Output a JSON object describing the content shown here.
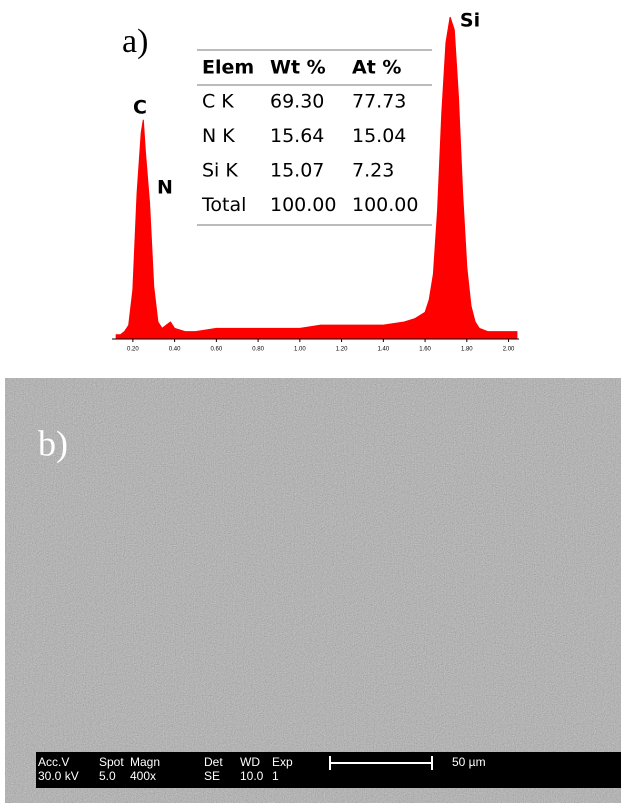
{
  "chart_data": {
    "type": "area",
    "panel_label": "a)",
    "color": "#ff0000",
    "x": [
      0.12,
      0.14,
      0.16,
      0.18,
      0.2,
      0.22,
      0.24,
      0.25,
      0.26,
      0.28,
      0.3,
      0.32,
      0.34,
      0.36,
      0.38,
      0.4,
      0.45,
      0.5,
      0.6,
      0.7,
      0.8,
      0.9,
      1.0,
      1.1,
      1.2,
      1.3,
      1.4,
      1.5,
      1.55,
      1.6,
      1.62,
      1.64,
      1.66,
      1.68,
      1.7,
      1.72,
      1.74,
      1.76,
      1.78,
      1.8,
      1.82,
      1.84,
      1.86,
      1.9,
      2.0,
      2.04
    ],
    "values": [
      1,
      1,
      2,
      4,
      15,
      45,
      64,
      68,
      58,
      42,
      16,
      5,
      3,
      4,
      5,
      3,
      2,
      2,
      3,
      3,
      3,
      3,
      3,
      4,
      4,
      4,
      4,
      5,
      6,
      8,
      12,
      20,
      40,
      70,
      92,
      100,
      96,
      75,
      45,
      22,
      10,
      5,
      3,
      2,
      2,
      2
    ],
    "xlim": [
      0.1,
      2.05
    ],
    "ylim": [
      0,
      100
    ],
    "xticks": [
      {
        "value": 0.2,
        "label": "0.20"
      },
      {
        "value": 0.4,
        "label": "0.40"
      },
      {
        "value": 0.6,
        "label": "0.60"
      },
      {
        "value": 0.8,
        "label": "0.80"
      },
      {
        "value": 1.0,
        "label": "1.00"
      },
      {
        "value": 1.2,
        "label": "1.20"
      },
      {
        "value": 1.4,
        "label": "1.40"
      },
      {
        "value": 1.6,
        "label": "1.60"
      },
      {
        "value": 1.8,
        "label": "1.80"
      },
      {
        "value": 2.0,
        "label": "2.00"
      }
    ],
    "annotations": [
      "C",
      "N",
      "Si"
    ]
  },
  "table": {
    "header": [
      "Elem",
      "Wt %",
      "At %"
    ],
    "rows": [
      [
        "C K",
        "69.30",
        "77.73"
      ],
      [
        "N K",
        "15.64",
        "15.04"
      ],
      [
        "Si K",
        "15.07",
        "7.23"
      ],
      [
        "Total",
        "100.00",
        "100.00"
      ]
    ]
  },
  "sem": {
    "panel_label": "b)",
    "databar": [
      [
        "Acc.V",
        "Spot",
        "Magn",
        "Det",
        "WD",
        "Exp"
      ],
      [
        "30.0 kV",
        "5.0",
        "400x",
        "SE",
        "10.0",
        "1"
      ]
    ],
    "scale_label": "50 µm"
  }
}
